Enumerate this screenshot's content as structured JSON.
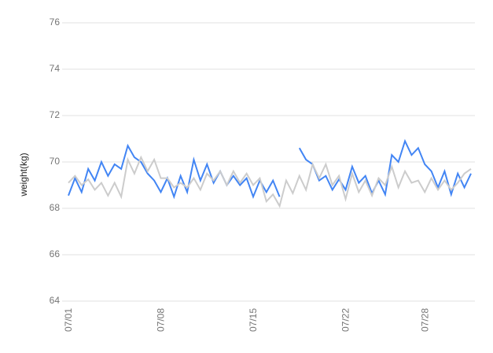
{
  "chart_data": {
    "type": "line",
    "y_label": "weight(kg)",
    "categories": [
      "07/01",
      null,
      null,
      null,
      null,
      null,
      null,
      null,
      null,
      null,
      null,
      null,
      null,
      null,
      "07/08",
      null,
      null,
      null,
      null,
      null,
      null,
      null,
      null,
      null,
      null,
      null,
      null,
      null,
      "07/15",
      null,
      null,
      null,
      null,
      null,
      null,
      null,
      null,
      null,
      null,
      null,
      null,
      null,
      "07/22",
      null,
      null,
      null,
      null,
      null,
      null,
      null,
      null,
      null,
      null,
      null,
      "07/28",
      null,
      null,
      null,
      null,
      null,
      null,
      null
    ],
    "series": [
      {
        "color": "#4285f4",
        "values": [
          68.55,
          69.3,
          68.7,
          69.7,
          69.2,
          70.0,
          69.4,
          69.9,
          69.7,
          70.7,
          70.2,
          70.0,
          69.5,
          69.2,
          68.7,
          69.3,
          68.5,
          69.4,
          68.7,
          70.1,
          69.2,
          69.9,
          69.1,
          69.6,
          69.0,
          69.4,
          69.0,
          69.3,
          68.5,
          69.2,
          68.7,
          69.2,
          68.5,
          null,
          null,
          70.6,
          70.1,
          69.9,
          69.2,
          69.4,
          68.8,
          69.25,
          68.8,
          69.8,
          69.1,
          69.4,
          68.65,
          69.2,
          68.6,
          70.3,
          70.0,
          70.9,
          70.3,
          70.6,
          69.9,
          69.6,
          68.9,
          69.6,
          68.6,
          69.5,
          68.9,
          69.5
        ]
      },
      {
        "color": "#cccccc",
        "values": [
          69.1,
          69.4,
          69.0,
          69.25,
          68.8,
          69.1,
          68.55,
          69.1,
          68.5,
          70.1,
          69.5,
          70.2,
          69.6,
          70.1,
          69.3,
          69.3,
          68.9,
          69.1,
          68.9,
          69.3,
          68.8,
          69.5,
          69.2,
          69.6,
          69.0,
          69.6,
          69.1,
          69.5,
          69.0,
          69.3,
          68.3,
          68.6,
          68.1,
          69.2,
          68.65,
          69.4,
          68.8,
          69.9,
          69.3,
          69.9,
          69.0,
          69.4,
          68.4,
          69.5,
          68.7,
          69.2,
          68.55,
          69.3,
          69.0,
          69.8,
          68.9,
          69.6,
          69.1,
          69.2,
          68.7,
          69.3,
          68.8,
          69.2,
          68.8,
          69.1,
          69.5,
          69.7
        ]
      }
    ],
    "ylim": [
      64,
      76
    ],
    "yticks": [
      64,
      66,
      68,
      70,
      72,
      74,
      76
    ],
    "grid": true
  }
}
